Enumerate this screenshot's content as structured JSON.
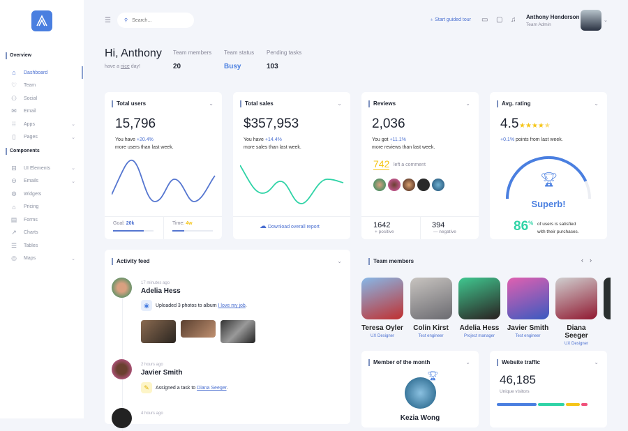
{
  "sidebar": {
    "sections": [
      {
        "label": "Overview",
        "items": [
          {
            "label": "Dashboard",
            "icon": "home-icon",
            "active": true
          },
          {
            "label": "Team",
            "icon": "heart-icon"
          },
          {
            "label": "Social",
            "icon": "users-icon"
          },
          {
            "label": "Email",
            "icon": "mail-icon"
          },
          {
            "label": "Apps",
            "icon": "grid-icon",
            "chevron": true
          },
          {
            "label": "Pages",
            "icon": "file-icon",
            "chevron": true
          }
        ]
      },
      {
        "label": "Components",
        "items": [
          {
            "label": "UI Elements",
            "icon": "briefcase-icon",
            "chevron": true
          },
          {
            "label": "Emails",
            "icon": "inbox-icon",
            "chevron": true
          },
          {
            "label": "Widgets",
            "icon": "gear-icon"
          },
          {
            "label": "Pricing",
            "icon": "tag-icon"
          },
          {
            "label": "Forms",
            "icon": "form-icon"
          },
          {
            "label": "Charts",
            "icon": "chart-icon"
          },
          {
            "label": "Tables",
            "icon": "list-icon"
          },
          {
            "label": "Maps",
            "icon": "pin-icon",
            "chevron": true
          }
        ]
      }
    ]
  },
  "header": {
    "search_placeholder": "Search...",
    "guided_tour": "Start guided tour",
    "user_name": "Anthony Henderson",
    "user_role": "Team Admin"
  },
  "greeting": {
    "title": "Hi, Anthony",
    "sub_pre": "have a ",
    "sub_link": "nice",
    "sub_post": " day!",
    "stats": [
      {
        "label": "Team members",
        "value": "20"
      },
      {
        "label": "Team status",
        "value": "Busy"
      },
      {
        "label": "Pending tasks",
        "value": "103"
      }
    ]
  },
  "cards": {
    "users": {
      "title": "Total users",
      "value": "15,796",
      "pre": "You have ",
      "delta": "+20.4%",
      "post": "more users than last week.",
      "goal_label": "Goal:",
      "goal_value": "20k",
      "goal_progress": 0.75,
      "time_label": "Time:",
      "time_value": "4w",
      "time_progress": 0.3
    },
    "sales": {
      "title": "Total sales",
      "value": "$357,953",
      "pre": "You have ",
      "delta": "+14.4%",
      "post": "more sales than last week.",
      "download": "Download overall report"
    },
    "reviews": {
      "title": "Reviews",
      "value": "2,036",
      "pre": "You got ",
      "delta": "+11.1%",
      "post": "more reviews than last week.",
      "comments": "742",
      "comments_label": "left a comment",
      "positive": "1642",
      "positive_label": "+ positive",
      "negative": "394",
      "negative_label": "— negative"
    },
    "rating": {
      "title": "Avg. rating",
      "value": "4.5",
      "stars": 4.5,
      "delta": "+0.1%",
      "delta_post": " points from last week.",
      "verdict": "Superb!",
      "percent": "86",
      "percent_sign": "%",
      "satisfied": "of users is satisfied",
      "satisfied2": "with their purchases.",
      "gauge": 0.86
    }
  },
  "activity": {
    "title": "Activity feed",
    "items": [
      {
        "time": "17 minutes ago",
        "name": "Adelia Hess",
        "text": "Uploaded 3 photos to album ",
        "link": "I love my job",
        "end": "."
      },
      {
        "time": "2 hours ago",
        "name": "Javier Smith",
        "text": "Assigned a task to ",
        "link": "Diana Seeger",
        "end": "."
      },
      {
        "time": "4 hours ago"
      }
    ]
  },
  "team": {
    "title": "Team members",
    "members": [
      {
        "name": "Teresa Oyler",
        "role": "UX Designer"
      },
      {
        "name": "Colin Kirst",
        "role": "Test engineer"
      },
      {
        "name": "Adelia Hess",
        "role": "Project manager"
      },
      {
        "name": "Javier Smith",
        "role": "Test engineer"
      },
      {
        "name": "Diana Seeger",
        "role": "UX Designer"
      }
    ]
  },
  "motm": {
    "title": "Member of the month",
    "name": "Kezia Wong"
  },
  "traffic": {
    "title": "Website traffic",
    "value": "46,185",
    "label": "Unique visitors",
    "segments": [
      {
        "share": 0.4,
        "color": "#4a7fe0"
      },
      {
        "share": 0.27,
        "color": "#2fd3a6"
      },
      {
        "share": 0.14,
        "color": "#f5c518"
      },
      {
        "share": 0.06,
        "color": "#f0507a"
      }
    ]
  }
}
